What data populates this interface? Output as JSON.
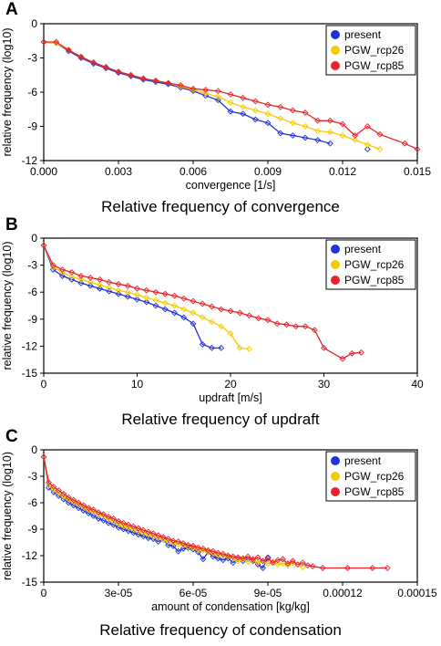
{
  "colors": {
    "present": "#2230d8",
    "PGW_rcp26": "#f2cc00",
    "PGW_rcp85": "#e8222b"
  },
  "panels": [
    {
      "letter": "A",
      "caption": "Relative frequency of convergence"
    },
    {
      "letter": "B",
      "caption": "Relative frequency of updraft"
    },
    {
      "letter": "C",
      "caption": "Relative frequency of condensation"
    }
  ],
  "chart_data": [
    {
      "type": "line",
      "xlabel": "convergence [1/s]",
      "ylabel": "relative frequency (log10)",
      "xlim": [
        0,
        0.015
      ],
      "ylim": [
        -12,
        0
      ],
      "xticks": [
        0,
        0.003,
        0.006,
        0.009,
        0.012,
        0.015
      ],
      "xtick_labels": [
        "0.000",
        "0.003",
        "0.006",
        "0.009",
        "0.012",
        "0.015"
      ],
      "yticks": [
        0,
        -3,
        -6,
        -9,
        -12
      ],
      "ytick_labels": [
        "0",
        "-3",
        "-6",
        "-9",
        "-12"
      ],
      "legend_position": "top-right",
      "series": [
        {
          "name": "present",
          "x": [
            0,
            0.0005,
            0.001,
            0.0015,
            0.002,
            0.0025,
            0.003,
            0.0035,
            0.004,
            0.0045,
            0.005,
            0.0055,
            0.006,
            0.0065,
            0.007,
            0.0075,
            0.008,
            0.0085,
            0.009,
            0.0095,
            0.01,
            0.0105,
            0.011,
            0.0115,
            0.013
          ],
          "y": [
            -1.6,
            -1.7,
            -2.4,
            -3.0,
            -3.5,
            -3.9,
            -4.3,
            -4.6,
            -4.9,
            -5.1,
            -5.3,
            -5.6,
            -5.9,
            -6.3,
            -6.7,
            -7.7,
            -7.9,
            -8.4,
            -8.7,
            -9.6,
            -9.8,
            -10.0,
            -10.2,
            -10.5,
            -11.0
          ]
        },
        {
          "name": "PGW_rcp26",
          "x": [
            0,
            0.0005,
            0.001,
            0.0015,
            0.002,
            0.0025,
            0.003,
            0.0035,
            0.004,
            0.0045,
            0.005,
            0.0055,
            0.006,
            0.0065,
            0.007,
            0.0075,
            0.008,
            0.0085,
            0.009,
            0.0095,
            0.01,
            0.0105,
            0.011,
            0.0115,
            0.012,
            0.0125,
            0.013,
            0.0135
          ],
          "y": [
            -1.6,
            -1.7,
            -2.3,
            -2.9,
            -3.4,
            -3.8,
            -4.2,
            -4.5,
            -4.8,
            -5.0,
            -5.2,
            -5.5,
            -5.8,
            -6.1,
            -6.4,
            -6.9,
            -7.3,
            -7.6,
            -7.9,
            -8.3,
            -8.7,
            -9.0,
            -9.4,
            -9.5,
            -9.8,
            -10.2,
            -10.6,
            -11.0
          ]
        },
        {
          "name": "PGW_rcp85",
          "x": [
            0,
            0.0005,
            0.001,
            0.0015,
            0.002,
            0.0025,
            0.003,
            0.0035,
            0.004,
            0.0045,
            0.005,
            0.0055,
            0.006,
            0.0065,
            0.007,
            0.0075,
            0.008,
            0.0085,
            0.009,
            0.0095,
            0.01,
            0.0105,
            0.011,
            0.0115,
            0.012,
            0.0125,
            0.013,
            0.0135,
            0.0145,
            0.015
          ],
          "y": [
            -1.6,
            -1.6,
            -2.3,
            -2.9,
            -3.4,
            -3.8,
            -4.2,
            -4.5,
            -4.8,
            -5.0,
            -5.2,
            -5.4,
            -5.7,
            -5.8,
            -5.9,
            -6.2,
            -6.5,
            -6.8,
            -7.1,
            -7.3,
            -7.6,
            -7.8,
            -8.5,
            -8.5,
            -8.8,
            -9.8,
            -9.0,
            -9.7,
            -10.5,
            -11.0
          ]
        }
      ]
    },
    {
      "type": "line",
      "xlabel": "updraft [m/s]",
      "ylabel": "relative frequency (log10)",
      "xlim": [
        0,
        40
      ],
      "ylim": [
        -15,
        0
      ],
      "xticks": [
        0,
        10,
        20,
        30,
        40
      ],
      "xtick_labels": [
        "0",
        "10",
        "20",
        "30",
        "40"
      ],
      "yticks": [
        0,
        -3,
        -6,
        -9,
        -12,
        -15
      ],
      "ytick_labels": [
        "0",
        "-3",
        "-6",
        "-9",
        "-12",
        "-15"
      ],
      "legend_position": "top-right",
      "series": [
        {
          "name": "present",
          "x": [
            0,
            1,
            2,
            3,
            4,
            5,
            6,
            7,
            8,
            9,
            10,
            11,
            12,
            13,
            14,
            15,
            16,
            17,
            18,
            19
          ],
          "y": [
            -0.8,
            -3.5,
            -4.2,
            -4.6,
            -5.0,
            -5.3,
            -5.6,
            -5.9,
            -6.2,
            -6.5,
            -6.8,
            -7.1,
            -7.5,
            -7.9,
            -8.3,
            -8.8,
            -9.5,
            -11.8,
            -12.2,
            -12.2
          ]
        },
        {
          "name": "PGW_rcp26",
          "x": [
            0,
            1,
            2,
            3,
            4,
            5,
            6,
            7,
            8,
            9,
            10,
            11,
            12,
            13,
            14,
            15,
            16,
            17,
            18,
            19,
            20,
            21,
            22
          ],
          "y": [
            -0.8,
            -3.2,
            -3.8,
            -4.3,
            -4.6,
            -4.9,
            -5.2,
            -5.5,
            -5.8,
            -6.0,
            -6.3,
            -6.6,
            -6.9,
            -7.2,
            -7.5,
            -7.9,
            -8.3,
            -8.8,
            -9.3,
            -9.8,
            -10.6,
            -12.2,
            -12.3
          ]
        },
        {
          "name": "PGW_rcp85",
          "x": [
            0,
            1,
            2,
            3,
            4,
            5,
            6,
            7,
            8,
            9,
            10,
            11,
            12,
            13,
            14,
            15,
            16,
            17,
            18,
            19,
            20,
            21,
            22,
            23,
            24,
            25,
            26,
            27,
            28,
            29,
            30,
            32,
            33,
            34
          ],
          "y": [
            -0.8,
            -3.0,
            -3.5,
            -3.8,
            -4.2,
            -4.4,
            -4.6,
            -4.9,
            -5.1,
            -5.3,
            -5.6,
            -5.8,
            -6.0,
            -6.2,
            -6.4,
            -6.7,
            -7.0,
            -7.3,
            -7.6,
            -7.9,
            -8.1,
            -8.3,
            -8.6,
            -8.9,
            -9.1,
            -9.5,
            -9.6,
            -9.8,
            -9.8,
            -10.2,
            -12.2,
            -13.4,
            -12.8,
            -12.7
          ]
        }
      ]
    },
    {
      "type": "line",
      "xlabel": "amount of condensation [kg/kg]",
      "ylabel": "relative frequency (log10)",
      "xlim": [
        0,
        0.00015
      ],
      "ylim": [
        -15,
        0
      ],
      "xticks": [
        0,
        3e-05,
        6e-05,
        9e-05,
        0.00012,
        0.00015
      ],
      "xtick_labels": [
        "0",
        "3e-05",
        "6e-05",
        "9e-05",
        "0.00012",
        "0.00015"
      ],
      "yticks": [
        0,
        -3,
        -6,
        -9,
        -12,
        -15
      ],
      "ytick_labels": [
        "0",
        "-3",
        "-6",
        "-9",
        "-12",
        "-15"
      ],
      "legend_position": "top-right",
      "series": [
        {
          "name": "present",
          "x": [
            0,
            2e-06,
            4e-06,
            6e-06,
            8e-06,
            1e-05,
            1.2e-05,
            1.4e-05,
            1.6e-05,
            1.8e-05,
            2e-05,
            2.2e-05,
            2.4e-05,
            2.6e-05,
            2.8e-05,
            3e-05,
            3.2e-05,
            3.4e-05,
            3.6e-05,
            3.8e-05,
            4e-05,
            4.2e-05,
            4.4e-05,
            4.6e-05,
            4.8e-05,
            5e-05,
            5.2e-05,
            5.4e-05,
            5.6e-05,
            5.8e-05,
            6e-05,
            6.2e-05,
            6.4e-05,
            6.6e-05,
            6.8e-05,
            7e-05,
            7.2e-05,
            7.4e-05,
            7.6e-05,
            7.8e-05,
            8e-05,
            8.2e-05,
            8.4e-05,
            8.6e-05,
            8.8e-05,
            9e-05
          ],
          "y": [
            -0.8,
            -4.3,
            -4.8,
            -5.2,
            -5.6,
            -6.0,
            -6.3,
            -6.6,
            -6.9,
            -7.2,
            -7.5,
            -7.8,
            -8.0,
            -8.3,
            -8.5,
            -8.8,
            -9.0,
            -9.2,
            -9.4,
            -9.6,
            -9.8,
            -10.0,
            -10.1,
            -10.4,
            -10.2,
            -10.8,
            -10.9,
            -11.5,
            -11.2,
            -11.1,
            -11.3,
            -11.6,
            -12.4,
            -11.6,
            -12.1,
            -12.3,
            -12.5,
            -12.3,
            -12.8,
            -12.4,
            -12.6,
            -12.4,
            -12.6,
            -13.0,
            -13.4,
            -12.2
          ]
        },
        {
          "name": "PGW_rcp26",
          "x": [
            0,
            2e-06,
            4e-06,
            6e-06,
            8e-06,
            1e-05,
            1.2e-05,
            1.4e-05,
            1.6e-05,
            1.8e-05,
            2e-05,
            2.2e-05,
            2.4e-05,
            2.6e-05,
            2.8e-05,
            3e-05,
            3.2e-05,
            3.4e-05,
            3.6e-05,
            3.8e-05,
            4e-05,
            4.2e-05,
            4.4e-05,
            4.6e-05,
            4.8e-05,
            5e-05,
            5.2e-05,
            5.4e-05,
            5.6e-05,
            5.8e-05,
            6e-05,
            6.2e-05,
            6.4e-05,
            6.6e-05,
            6.8e-05,
            7e-05,
            7.2e-05,
            7.4e-05,
            7.6e-05,
            7.8e-05,
            8e-05,
            8.2e-05,
            8.4e-05,
            8.6e-05,
            8.8e-05,
            9e-05,
            9.2e-05,
            9.4e-05,
            9.6e-05,
            9.8e-05,
            0.0001,
            0.000102,
            0.000104
          ],
          "y": [
            -0.8,
            -4.0,
            -4.5,
            -4.9,
            -5.3,
            -5.6,
            -5.9,
            -6.2,
            -6.5,
            -6.8,
            -7.0,
            -7.3,
            -7.5,
            -7.8,
            -8.1,
            -8.4,
            -8.6,
            -8.8,
            -9.0,
            -9.2,
            -9.4,
            -9.6,
            -9.8,
            -10.0,
            -10.2,
            -10.4,
            -10.5,
            -10.7,
            -10.8,
            -11.0,
            -11.1,
            -11.3,
            -11.4,
            -11.6,
            -11.7,
            -11.9,
            -12.0,
            -12.1,
            -12.3,
            -12.6,
            -12.4,
            -12.7,
            -12.5,
            -12.8,
            -12.6,
            -12.9,
            -12.7,
            -13.0,
            -12.9,
            -13.1,
            -12.8,
            -13.0,
            -13.3
          ]
        },
        {
          "name": "PGW_rcp85",
          "x": [
            0,
            2e-06,
            4e-06,
            6e-06,
            8e-06,
            1e-05,
            1.2e-05,
            1.4e-05,
            1.6e-05,
            1.8e-05,
            2e-05,
            2.2e-05,
            2.4e-05,
            2.6e-05,
            2.8e-05,
            3e-05,
            3.2e-05,
            3.4e-05,
            3.6e-05,
            3.8e-05,
            4e-05,
            4.2e-05,
            4.4e-05,
            4.6e-05,
            4.8e-05,
            5e-05,
            5.2e-05,
            5.4e-05,
            5.6e-05,
            5.8e-05,
            6e-05,
            6.2e-05,
            6.4e-05,
            6.6e-05,
            6.8e-05,
            7e-05,
            7.2e-05,
            7.4e-05,
            7.6e-05,
            7.8e-05,
            8e-05,
            8.2e-05,
            8.4e-05,
            8.6e-05,
            8.8e-05,
            9e-05,
            9.2e-05,
            9.4e-05,
            9.6e-05,
            9.8e-05,
            0.0001,
            0.000102,
            0.000104,
            0.000106,
            0.000108,
            0.000112,
            0.000122,
            0.000132,
            0.000138
          ],
          "y": [
            -0.8,
            -3.7,
            -4.2,
            -4.6,
            -5.0,
            -5.4,
            -5.7,
            -6.0,
            -6.3,
            -6.6,
            -6.8,
            -7.1,
            -7.3,
            -7.6,
            -7.8,
            -8.1,
            -8.3,
            -8.5,
            -8.7,
            -8.9,
            -9.1,
            -9.3,
            -9.5,
            -9.7,
            -9.9,
            -10.1,
            -10.3,
            -10.4,
            -10.6,
            -10.8,
            -10.9,
            -11.1,
            -11.2,
            -11.4,
            -11.5,
            -11.7,
            -11.8,
            -12.0,
            -12.1,
            -12.2,
            -12.3,
            -12.1,
            -12.4,
            -12.2,
            -12.6,
            -12.3,
            -12.8,
            -12.5,
            -12.4,
            -12.9,
            -12.6,
            -13.0,
            -12.8,
            -13.1,
            -13.2,
            -13.4,
            -13.4,
            -13.4,
            -13.4
          ]
        }
      ]
    }
  ]
}
